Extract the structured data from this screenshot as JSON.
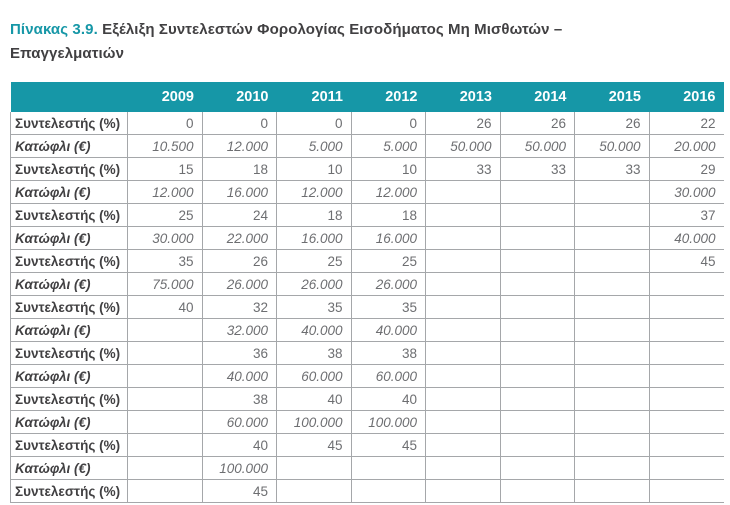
{
  "title": {
    "label": "Πίνακας 3.9.",
    "text": " Εξέλιξη Συντελεστών Φορολογίας Εισοδήματος Μη Μισθωτών – Επαγγελματιών"
  },
  "colors": {
    "accent_teal": "#1697a7",
    "header_text": "#ffffff",
    "label_text": "#414042",
    "value_text": "#6d6e71",
    "grid_line": "#a5a7aa"
  },
  "chart_data": {
    "type": "table",
    "title": "Πίνακας 3.9. Εξέλιξη Συντελεστών Φορολογίας Εισοδήματος Μη Μισθωτών – Επαγγελματιών",
    "years": [
      "2009",
      "2010",
      "2011",
      "2012",
      "2013",
      "2014",
      "2015",
      "2016"
    ],
    "rows": [
      {
        "type": "rate",
        "label": "Συντελεστής (%)",
        "values": [
          "0",
          "0",
          "0",
          "0",
          "26",
          "26",
          "26",
          "22"
        ]
      },
      {
        "type": "threshold",
        "label": "Κατώφλι (€)",
        "values": [
          "10.500",
          "12.000",
          "5.000",
          "5.000",
          "50.000",
          "50.000",
          "50.000",
          "20.000"
        ]
      },
      {
        "type": "rate",
        "label": "Συντελεστής (%)",
        "values": [
          "15",
          "18",
          "10",
          "10",
          "33",
          "33",
          "33",
          "29"
        ]
      },
      {
        "type": "threshold",
        "label": "Κατώφλι (€)",
        "values": [
          "12.000",
          "16.000",
          "12.000",
          "12.000",
          "",
          "",
          "",
          "30.000"
        ]
      },
      {
        "type": "rate",
        "label": "Συντελεστής (%)",
        "values": [
          "25",
          "24",
          "18",
          "18",
          "",
          "",
          "",
          "37"
        ]
      },
      {
        "type": "threshold",
        "label": "Κατώφλι (€)",
        "values": [
          "30.000",
          "22.000",
          "16.000",
          "16.000",
          "",
          "",
          "",
          "40.000"
        ]
      },
      {
        "type": "rate",
        "label": "Συντελεστής (%)",
        "values": [
          "35",
          "26",
          "25",
          "25",
          "",
          "",
          "",
          "45"
        ]
      },
      {
        "type": "threshold",
        "label": "Κατώφλι (€)",
        "values": [
          "75.000",
          "26.000",
          "26.000",
          "26.000",
          "",
          "",
          "",
          ""
        ]
      },
      {
        "type": "rate",
        "label": "Συντελεστής (%)",
        "values": [
          "40",
          "32",
          "35",
          "35",
          "",
          "",
          "",
          ""
        ]
      },
      {
        "type": "threshold",
        "label": "Κατώφλι (€)",
        "values": [
          "",
          "32.000",
          "40.000",
          "40.000",
          "",
          "",
          "",
          ""
        ]
      },
      {
        "type": "rate",
        "label": "Συντελεστής (%)",
        "values": [
          "",
          "36",
          "38",
          "38",
          "",
          "",
          "",
          ""
        ]
      },
      {
        "type": "threshold",
        "label": "Κατώφλι (€)",
        "values": [
          "",
          "40.000",
          "60.000",
          "60.000",
          "",
          "",
          "",
          ""
        ]
      },
      {
        "type": "rate",
        "label": "Συντελεστής (%)",
        "values": [
          "",
          "38",
          "40",
          "40",
          "",
          "",
          "",
          ""
        ]
      },
      {
        "type": "threshold",
        "label": "Κατώφλι (€)",
        "values": [
          "",
          "60.000",
          "100.000",
          "100.000",
          "",
          "",
          "",
          ""
        ]
      },
      {
        "type": "rate",
        "label": "Συντελεστής (%)",
        "values": [
          "",
          "40",
          "45",
          "45",
          "",
          "",
          "",
          ""
        ]
      },
      {
        "type": "threshold",
        "label": "Κατώφλι (€)",
        "values": [
          "",
          "100.000",
          "",
          "",
          "",
          "",
          "",
          ""
        ]
      },
      {
        "type": "rate",
        "label": "Συντελεστής (%)",
        "values": [
          "",
          "45",
          "",
          "",
          "",
          "",
          "",
          ""
        ]
      }
    ]
  }
}
